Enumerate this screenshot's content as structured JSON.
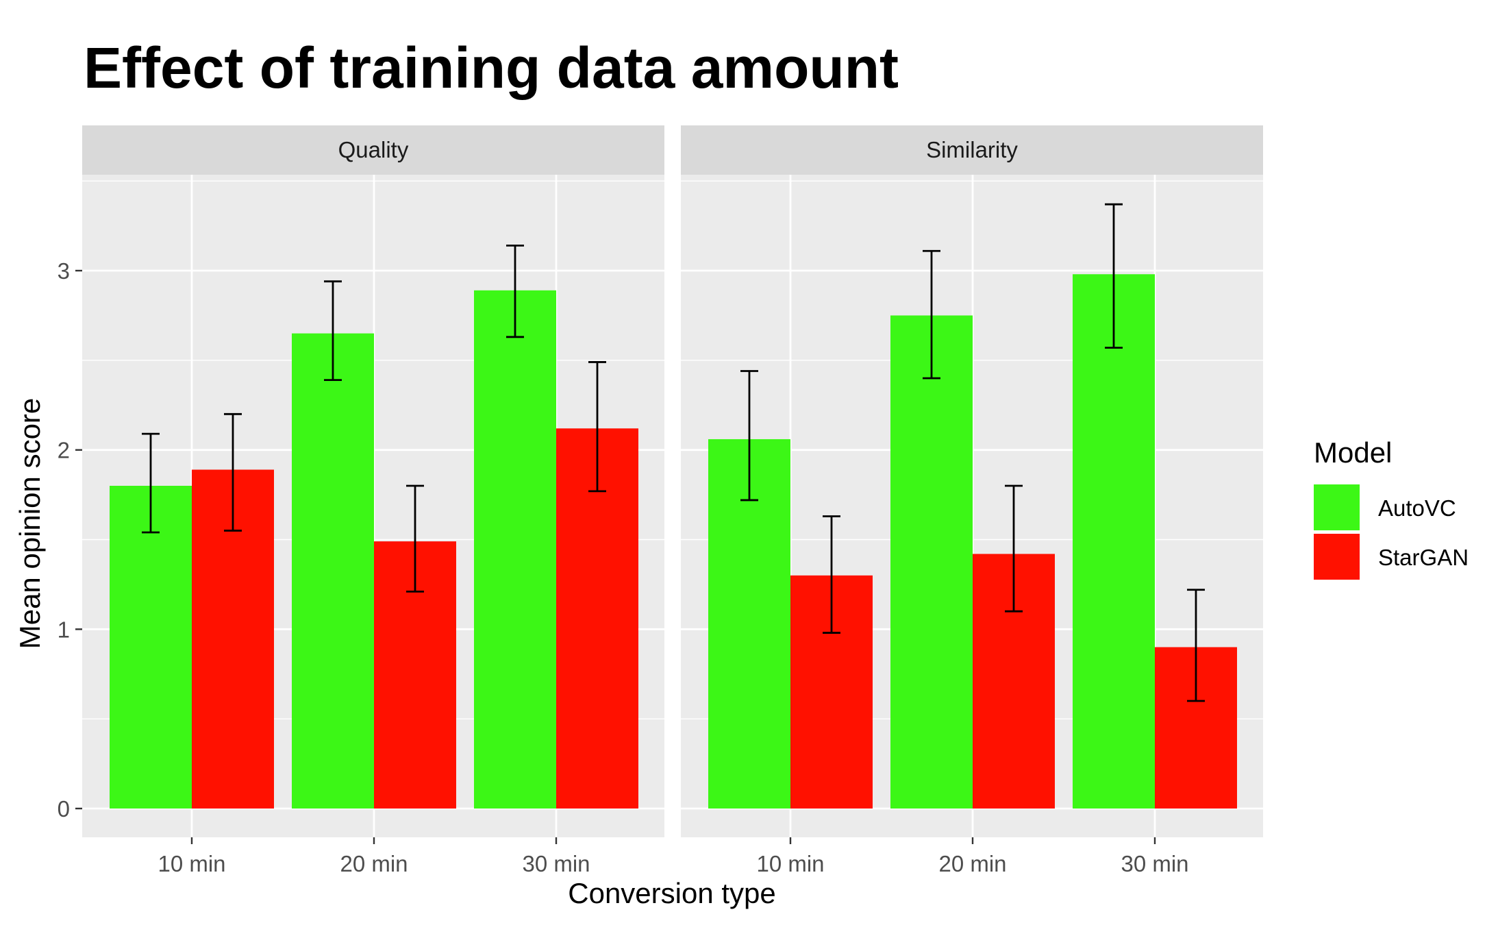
{
  "chart_data": {
    "type": "bar",
    "title": "Effect of training data amount",
    "xlabel": "Conversion type",
    "ylabel": "Mean opinion score",
    "categories": [
      "10 min",
      "20 min",
      "30 min"
    ],
    "ylim": [
      -0.17,
      3.52
    ],
    "yticks": [
      0,
      1,
      2,
      3
    ],
    "grid": true,
    "legend": {
      "title": "Model",
      "placement": "right"
    },
    "colors": {
      "AutoVC": "#3cf716",
      "StarGAN": "#ff1100"
    },
    "facets": [
      {
        "name": "Quality",
        "series": [
          {
            "name": "AutoVC",
            "values": [
              1.8,
              2.65,
              2.89
            ],
            "err_low": [
              1.54,
              2.39,
              2.63
            ],
            "err_high": [
              2.09,
              2.94,
              3.14
            ]
          },
          {
            "name": "StarGAN",
            "values": [
              1.89,
              1.49,
              2.12
            ],
            "err_low": [
              1.55,
              1.21,
              1.77
            ],
            "err_high": [
              2.2,
              1.8,
              2.49
            ]
          }
        ]
      },
      {
        "name": "Similarity",
        "series": [
          {
            "name": "AutoVC",
            "values": [
              2.06,
              2.75,
              2.98
            ],
            "err_low": [
              1.72,
              2.4,
              2.57
            ],
            "err_high": [
              2.44,
              3.11,
              3.37
            ]
          },
          {
            "name": "StarGAN",
            "values": [
              1.3,
              1.42,
              0.9
            ],
            "err_low": [
              0.98,
              1.1,
              0.6
            ],
            "err_high": [
              1.63,
              1.8,
              1.22
            ]
          }
        ]
      }
    ]
  }
}
